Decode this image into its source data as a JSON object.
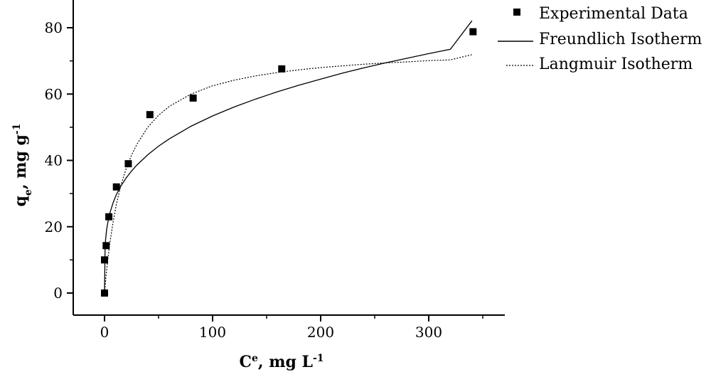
{
  "chart_data": {
    "type": "scatter",
    "xlabel": {
      "main": "C",
      "sup": "e",
      "rest": ", mg L",
      "unit_sup": "-1"
    },
    "ylabel": {
      "main": "q",
      "sub": "e",
      "rest": ", mg g",
      "unit_sup": "-1"
    },
    "xlim": [
      -30,
      370
    ],
    "ylim": [
      -6,
      88
    ],
    "xticks": [
      0,
      100,
      200,
      300
    ],
    "yticks": [
      0,
      20,
      40,
      60,
      80
    ],
    "grid": false,
    "legend_position": "top-right",
    "series": [
      {
        "name": "Experimental Data",
        "kind": "points",
        "marker": "square",
        "x": [
          0,
          0,
          1.5,
          4,
          11,
          22,
          42,
          82,
          164,
          341
        ],
        "y": [
          0,
          10,
          14.3,
          23,
          32,
          39,
          53.8,
          58.8,
          67.6,
          78.8
        ]
      },
      {
        "name": "Freundlich Isotherm",
        "kind": "line",
        "style": "solid",
        "x": [
          0,
          0.5,
          1,
          2,
          3,
          5,
          8,
          11,
          15,
          20,
          25,
          30,
          40,
          50,
          60,
          80,
          100,
          120,
          140,
          160,
          180,
          200,
          220,
          240,
          260,
          280,
          300,
          320,
          340
        ],
        "y": [
          0,
          13.5,
          16.1,
          19.2,
          21.2,
          24.2,
          27.3,
          29.7,
          32.2,
          34.7,
          36.8,
          38.6,
          41.7,
          44.3,
          46.5,
          50.3,
          53.4,
          56.1,
          58.5,
          60.7,
          62.7,
          64.5,
          66.3,
          67.9,
          69.4,
          70.8,
          72.2,
          73.5,
          82.1
        ]
      },
      {
        "name": "Langmuir Isotherm",
        "kind": "line",
        "style": "dotted",
        "x": [
          0,
          0.5,
          1,
          2,
          3,
          5,
          8,
          11,
          15,
          20,
          25,
          30,
          40,
          50,
          60,
          80,
          100,
          120,
          140,
          160,
          180,
          200,
          220,
          240,
          260,
          280,
          300,
          320,
          340
        ],
        "y": [
          0,
          1.9,
          3.7,
          7.0,
          10.0,
          15.2,
          21.6,
          26.8,
          32.3,
          37.5,
          41.6,
          44.9,
          50.0,
          53.6,
          56.3,
          60.0,
          62.5,
          64.2,
          65.5,
          66.5,
          67.3,
          68.0,
          68.5,
          69.0,
          69.4,
          69.7,
          70.1,
          70.3,
          71.9
        ]
      }
    ]
  }
}
